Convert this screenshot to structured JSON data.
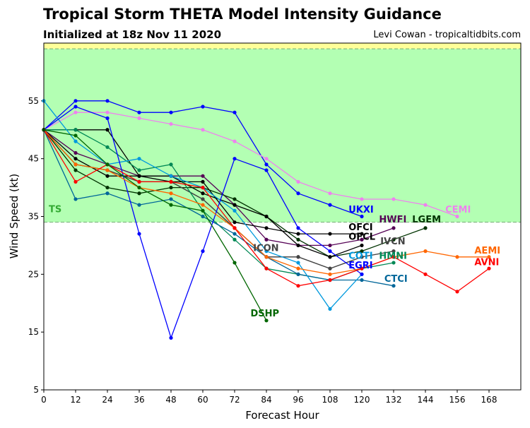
{
  "header": {
    "title": "Tropical Storm THETA Model Intensity Guidance",
    "subtitle": "Initialized at 18z Nov 11 2020",
    "credit": "Levi Cowan - tropicaltidbits.com"
  },
  "chart_data": {
    "type": "line",
    "xlabel": "Forecast Hour",
    "ylabel": "Wind Speed (kt)",
    "xlim": [
      0,
      180
    ],
    "ylim": [
      5,
      65
    ],
    "xticks": [
      0,
      12,
      24,
      36,
      48,
      60,
      72,
      84,
      96,
      108,
      120,
      132,
      144,
      156,
      168
    ],
    "yticks": [
      5,
      15,
      25,
      35,
      45,
      55
    ],
    "bands": [
      {
        "label": "TS",
        "from": 34,
        "to": 64,
        "color": "#b3ffb3",
        "label_color": "#33aa33"
      },
      {
        "label": "",
        "from": 64,
        "to": 65,
        "color": "#ffff99",
        "label_color": "#000000"
      }
    ],
    "series": [
      {
        "name": "UKXI",
        "color": "#0000ff",
        "x": [
          0,
          12,
          24,
          36,
          48,
          60,
          72,
          84,
          96,
          108,
          120
        ],
        "y": [
          50,
          55,
          55,
          53,
          53,
          54,
          53,
          44,
          39,
          37,
          35
        ]
      },
      {
        "name": "CEMI",
        "color": "#ee82ee",
        "x": [
          0,
          12,
          24,
          36,
          48,
          60,
          72,
          84,
          96,
          108,
          120,
          132,
          144,
          156
        ],
        "y": [
          50,
          53,
          53,
          52,
          51,
          50,
          48,
          45,
          41,
          39,
          38,
          38,
          37,
          35
        ]
      },
      {
        "name": "HWFI",
        "color": "#550055",
        "x": [
          0,
          12,
          24,
          36,
          48,
          60,
          72,
          84,
          96,
          108,
          120,
          132
        ],
        "y": [
          50,
          46,
          44,
          42,
          42,
          42,
          37,
          31,
          30,
          30,
          31,
          33
        ]
      },
      {
        "name": "LGEM",
        "color": "#003300",
        "x": [
          0,
          12,
          24,
          36,
          48,
          60,
          72,
          84,
          96,
          108,
          120,
          132,
          144
        ],
        "y": [
          50,
          43,
          40,
          39,
          40,
          40,
          38,
          35,
          31,
          28,
          29,
          31,
          33
        ]
      },
      {
        "name": "OFCI",
        "color": "#000000",
        "x": [
          0,
          12,
          24,
          36,
          48,
          60,
          72,
          84,
          96,
          108,
          120
        ],
        "y": [
          50,
          50,
          50,
          42,
          41,
          41,
          34,
          33,
          32,
          32,
          32
        ]
      },
      {
        "name": "OFCL",
        "color": "#000000",
        "x": [
          0,
          12,
          24,
          36,
          48,
          60,
          72,
          84,
          96,
          108,
          120
        ],
        "y": [
          50,
          45,
          42,
          42,
          42,
          39,
          37,
          35,
          30,
          28,
          30
        ]
      },
      {
        "name": "IVCN",
        "color": "#444444",
        "x": [
          0,
          12,
          24,
          36,
          48,
          60,
          72,
          84,
          96,
          108,
          120,
          132
        ],
        "y": [
          50,
          44,
          43,
          41,
          41,
          38,
          33,
          28,
          28,
          26,
          28,
          29
        ]
      },
      {
        "name": "ICON",
        "color": "#444444",
        "x": [
          0,
          12,
          24,
          36,
          48,
          60,
          72,
          84,
          96,
          108,
          120
        ],
        "y": [
          50,
          44,
          43,
          41,
          41,
          38,
          33,
          28,
          28,
          26,
          28
        ]
      },
      {
        "name": "HMNI",
        "color": "#008855",
        "x": [
          0,
          12,
          24,
          36,
          48,
          60,
          72,
          84,
          96,
          108,
          120,
          132
        ],
        "y": [
          50,
          50,
          47,
          43,
          44,
          36,
          31,
          26,
          25,
          24,
          26,
          27
        ]
      },
      {
        "name": "CTCI",
        "color": "#006699",
        "x": [
          0,
          12,
          24,
          36,
          48,
          60,
          72,
          84,
          96,
          108,
          120,
          132
        ],
        "y": [
          50,
          38,
          39,
          37,
          38,
          35,
          32,
          28,
          25,
          24,
          24,
          23
        ]
      },
      {
        "name": "COTI",
        "color": "#0099dd",
        "x": [
          0,
          12,
          24,
          36,
          48,
          60,
          72,
          84,
          96,
          108,
          120
        ],
        "y": [
          55,
          48,
          44,
          45,
          42,
          40,
          36,
          29,
          27,
          19,
          25
        ]
      },
      {
        "name": "EGRI",
        "color": "#0000ff",
        "x": [
          0,
          12,
          24,
          36,
          48,
          60,
          72,
          84,
          96,
          108,
          120
        ],
        "y": [
          50,
          54,
          52,
          32,
          14,
          29,
          45,
          43,
          33,
          29,
          25
        ]
      },
      {
        "name": "AEMI",
        "color": "#ff6600",
        "x": [
          0,
          12,
          24,
          36,
          48,
          60,
          72,
          84,
          96,
          108,
          120,
          132,
          144,
          156,
          168
        ],
        "y": [
          50,
          44,
          43,
          40,
          39,
          37,
          33,
          28,
          26,
          25,
          26,
          28,
          29,
          28,
          28
        ]
      },
      {
        "name": "AVNI",
        "color": "#ff0000",
        "x": [
          0,
          12,
          24,
          36,
          48,
          60,
          72,
          84,
          96,
          108,
          120,
          132,
          144,
          156,
          168
        ],
        "y": [
          50,
          41,
          44,
          41,
          41,
          40,
          33,
          26,
          23,
          24,
          26,
          28,
          25,
          22,
          26
        ]
      },
      {
        "name": "DSHP",
        "color": "#006600",
        "x": [
          0,
          12,
          24,
          36,
          48,
          60,
          72,
          84
        ],
        "y": [
          50,
          49,
          44,
          40,
          37,
          36,
          27,
          17
        ]
      }
    ],
    "labels": [
      {
        "text": "UKXI",
        "color": "#0000ff",
        "x": 115,
        "y": 36.3
      },
      {
        "text": "CEMI",
        "color": "#ee82ee",
        "x": 151.5,
        "y": 36.3
      },
      {
        "text": "HWFI",
        "color": "#550055",
        "x": 126.5,
        "y": 34.6
      },
      {
        "text": "LGEM",
        "color": "#003300",
        "x": 139,
        "y": 34.6
      },
      {
        "text": "OFCI",
        "color": "#000000",
        "x": 115,
        "y": 33.2
      },
      {
        "text": "OFCL",
        "color": "#000000",
        "x": 115,
        "y": 31.6
      },
      {
        "text": "IVCN",
        "color": "#444444",
        "x": 127,
        "y": 30.8
      },
      {
        "text": "ICON",
        "color": "#444444",
        "x": 79,
        "y": 29.6
      },
      {
        "text": "COTI",
        "color": "#0099dd",
        "x": 115,
        "y": 28.3
      },
      {
        "text": "HMNI",
        "color": "#008855",
        "x": 126.5,
        "y": 28.3
      },
      {
        "text": "AEMI",
        "color": "#ff6600",
        "x": 162.5,
        "y": 29.2
      },
      {
        "text": "AVNI",
        "color": "#ff0000",
        "x": 162.5,
        "y": 27.2
      },
      {
        "text": "EGRI",
        "color": "#0000ff",
        "x": 115,
        "y": 26.6
      },
      {
        "text": "CTCI",
        "color": "#006699",
        "x": 128.5,
        "y": 24.3
      },
      {
        "text": "DSHP",
        "color": "#006600",
        "x": 78,
        "y": 18.3
      }
    ]
  }
}
